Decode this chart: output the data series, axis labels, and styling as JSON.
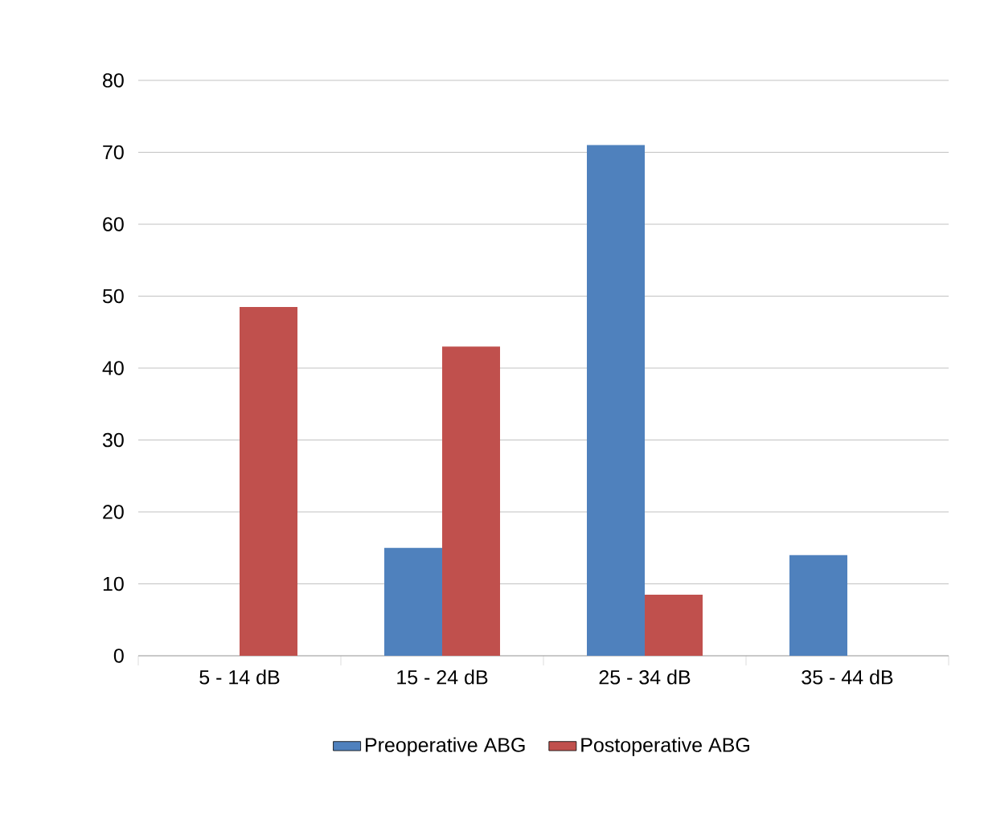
{
  "chart_data": {
    "type": "bar",
    "categories": [
      "5 - 14 dB",
      "15 - 24 dB",
      "25 - 34 dB",
      "35 - 44 dB"
    ],
    "series": [
      {
        "name": "Preoperative ABG",
        "color": "#4f81bd",
        "values": [
          null,
          15,
          71,
          14
        ]
      },
      {
        "name": "Postoperative ABG",
        "color": "#c0504d",
        "values": [
          48.5,
          43,
          8.5,
          null
        ]
      }
    ],
    "ylim": [
      0,
      80
    ],
    "yticks": [
      0,
      10,
      20,
      30,
      40,
      50,
      60,
      70,
      80
    ],
    "grid": "y",
    "legend": "bottom"
  }
}
